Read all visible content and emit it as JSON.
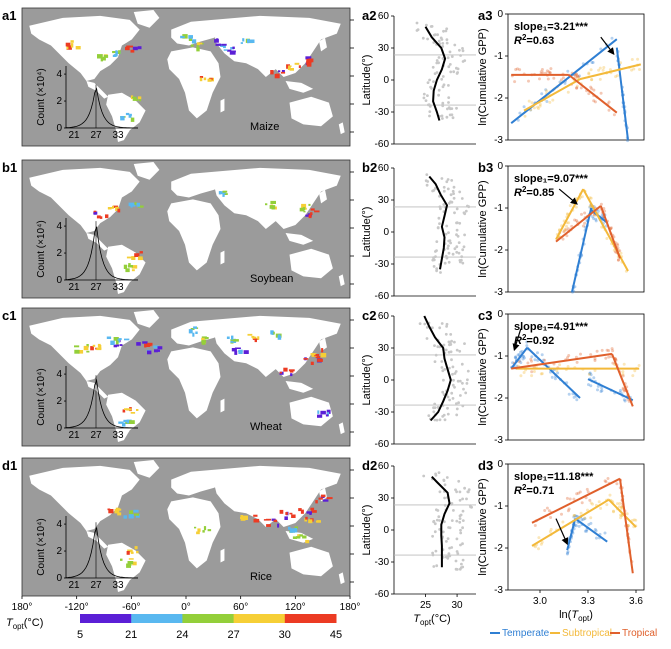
{
  "rows": [
    {
      "map_label": "a1",
      "lat_label": "a2",
      "reg_label": "a3",
      "crop": "Maize",
      "slope_text": "slope₁=3.21***",
      "r2_text": "=0.63",
      "hist_peak": 0.7,
      "lat_profile": [
        [
          -38,
          27.2
        ],
        [
          -30,
          26.8
        ],
        [
          -20,
          26.2
        ],
        [
          -10,
          26.3
        ],
        [
          0,
          26.8
        ],
        [
          10,
          27.6
        ],
        [
          20,
          28.1
        ],
        [
          30,
          27.5
        ],
        [
          40,
          26.0
        ],
        [
          50,
          25.0
        ]
      ],
      "lines": [
        {
          "region": "temperate",
          "pts": [
            [
              2.82,
              -2.6
            ],
            [
              3.48,
              -0.6
            ]
          ]
        },
        {
          "region": "temperate",
          "pts": [
            [
              3.48,
              -0.8
            ],
            [
              3.55,
              -3.0
            ]
          ]
        },
        {
          "region": "subtropical",
          "pts": [
            [
              2.9,
              -2.3
            ],
            [
              3.25,
              -1.55
            ]
          ]
        },
        {
          "region": "subtropical",
          "pts": [
            [
              3.25,
              -1.55
            ],
            [
              3.63,
              -1.2
            ]
          ]
        },
        {
          "region": "tropical",
          "pts": [
            [
              2.82,
              -1.45
            ],
            [
              3.18,
              -1.45
            ]
          ]
        },
        {
          "region": "tropical",
          "pts": [
            [
              3.18,
              -1.45
            ],
            [
              3.48,
              -2.35
            ]
          ]
        }
      ],
      "arrow": [
        [
          3.38,
          -0.55
        ],
        [
          3.46,
          -0.95
        ]
      ],
      "ylim": [
        -3,
        0
      ]
    },
    {
      "map_label": "b1",
      "lat_label": "b2",
      "reg_label": "b3",
      "crop": "Soybean",
      "slope_text": "slope₁=9.07***",
      "r2_text": "=0.85",
      "hist_peak": 0.95,
      "lat_profile": [
        [
          -35,
          27.3
        ],
        [
          -25,
          27.6
        ],
        [
          -15,
          27.9
        ],
        [
          -5,
          28.0
        ],
        [
          5,
          27.6
        ],
        [
          15,
          28.0
        ],
        [
          25,
          28.4
        ],
        [
          35,
          27.4
        ],
        [
          45,
          26.6
        ],
        [
          52,
          25.6
        ]
      ],
      "lines": [
        {
          "region": "temperate",
          "pts": [
            [
              3.2,
              -3.0
            ],
            [
              3.32,
              -1.0
            ]
          ]
        },
        {
          "region": "temperate",
          "pts": [
            [
              3.32,
              -1.05
            ],
            [
              3.42,
              -1.35
            ]
          ]
        },
        {
          "region": "subtropical",
          "pts": [
            [
              3.1,
              -1.75
            ],
            [
              3.27,
              -0.55
            ]
          ]
        },
        {
          "region": "subtropical",
          "pts": [
            [
              3.27,
              -0.55
            ],
            [
              3.55,
              -2.5
            ]
          ]
        },
        {
          "region": "tropical",
          "pts": [
            [
              3.1,
              -1.8
            ],
            [
              3.38,
              -0.95
            ]
          ]
        },
        {
          "region": "tropical",
          "pts": [
            [
              3.38,
              -0.95
            ],
            [
              3.5,
              -2.2
            ]
          ]
        }
      ],
      "arrow": [
        [
          3.12,
          -0.55
        ],
        [
          3.23,
          -0.9
        ]
      ],
      "ylim": [
        -3,
        0
      ]
    },
    {
      "map_label": "c1",
      "lat_label": "c2",
      "reg_label": "c3",
      "crop": "Wheat",
      "slope_text": "slope₁=4.91***",
      "r2_text": "=0.92",
      "hist_peak": 0.85,
      "lat_profile": [
        [
          -38,
          25.8
        ],
        [
          -30,
          27.0
        ],
        [
          -20,
          27.8
        ],
        [
          -10,
          28.5
        ],
        [
          0,
          29.0
        ],
        [
          10,
          28.5
        ],
        [
          20,
          28.0
        ],
        [
          30,
          27.8
        ],
        [
          40,
          26.5
        ],
        [
          50,
          25.6
        ],
        [
          60,
          24.8
        ]
      ],
      "lines": [
        {
          "region": "temperate",
          "pts": [
            [
              2.82,
              -1.3
            ],
            [
              2.92,
              -0.8
            ]
          ]
        },
        {
          "region": "temperate",
          "pts": [
            [
              2.92,
              -0.8
            ],
            [
              3.25,
              -2.0
            ]
          ]
        },
        {
          "region": "temperate",
          "pts": [
            [
              3.3,
              -1.55
            ],
            [
              3.58,
              -2.05
            ]
          ]
        },
        {
          "region": "subtropical",
          "pts": [
            [
              2.85,
              -1.3
            ],
            [
              3.62,
              -1.3
            ]
          ]
        },
        {
          "region": "tropical",
          "pts": [
            [
              2.82,
              -1.3
            ],
            [
              3.45,
              -0.95
            ]
          ]
        },
        {
          "region": "tropical",
          "pts": [
            [
              3.45,
              -0.95
            ],
            [
              3.58,
              -2.2
            ]
          ]
        }
      ],
      "arrow": [
        [
          2.88,
          -0.35
        ],
        [
          2.84,
          -0.85
        ]
      ],
      "ylim": [
        -3,
        0
      ]
    },
    {
      "map_label": "d1",
      "lat_label": "d2",
      "reg_label": "d3",
      "crop": "Rice",
      "slope_text": "slope₁=11.18***",
      "r2_text": "=0.71",
      "hist_peak": 0.9,
      "lat_profile": [
        [
          -35,
          27.6
        ],
        [
          -25,
          27.6
        ],
        [
          -15,
          27.6
        ],
        [
          -5,
          27.5
        ],
        [
          5,
          27.5
        ],
        [
          15,
          28.0
        ],
        [
          25,
          28.8
        ],
        [
          35,
          28.5
        ],
        [
          45,
          26.8
        ],
        [
          50,
          26.0
        ]
      ],
      "lines": [
        {
          "region": "temperate",
          "pts": [
            [
              3.17,
              -2.05
            ],
            [
              3.22,
              -1.3
            ]
          ]
        },
        {
          "region": "temperate",
          "pts": [
            [
              3.22,
              -1.3
            ],
            [
              3.42,
              -1.85
            ]
          ]
        },
        {
          "region": "subtropical",
          "pts": [
            [
              2.95,
              -1.95
            ],
            [
              3.43,
              -0.85
            ]
          ]
        },
        {
          "region": "subtropical",
          "pts": [
            [
              3.43,
              -0.85
            ],
            [
              3.6,
              -1.5
            ]
          ]
        },
        {
          "region": "tropical",
          "pts": [
            [
              2.95,
              -1.4
            ],
            [
              3.5,
              -0.35
            ]
          ]
        },
        {
          "region": "tropical",
          "pts": [
            [
              3.5,
              -0.35
            ],
            [
              3.58,
              -2.6
            ]
          ]
        }
      ],
      "arrow": [
        [
          3.1,
          -1.3
        ],
        [
          3.17,
          -1.9
        ]
      ],
      "ylim": [
        -3,
        0
      ]
    }
  ],
  "hist": {
    "ylabel": "Count (×10⁴)",
    "yticks": [
      "0",
      "2",
      "4"
    ],
    "xticks": [
      "21",
      "27",
      "33"
    ]
  },
  "lat_axis": {
    "ylabel": "Latitude(°)",
    "yticks": [
      "60",
      "30",
      "0",
      "-30",
      "-60"
    ],
    "xticks": [
      "25",
      "30"
    ],
    "xlabel_main": "T",
    "xlabel_sub": "opt",
    "xlabel_rest": "(°C)"
  },
  "reg_axis": {
    "ylabel": "ln(Cumulative GPP)",
    "yticks": [
      "0",
      "-1",
      "-2",
      "-3"
    ],
    "xticks": [
      "3.0",
      "3.3",
      "3.6"
    ],
    "xlabel_pre": "ln(",
    "xlabel_main": "T",
    "xlabel_sub": "opt",
    "xlabel_post": ")",
    "r2_main": "R",
    "r2_sup": "2"
  },
  "lon_ticks": [
    "180°",
    "-120°",
    "-60°",
    "0°",
    "60°",
    "120°",
    "180°"
  ],
  "colorbar": {
    "label_main": "T",
    "label_sub": "opt",
    "label_rest": "(°C)",
    "ticks": [
      "5",
      "21",
      "24",
      "27",
      "30",
      "45"
    ],
    "colors": [
      "#5b1fd6",
      "#59b8f0",
      "#93cf3a",
      "#f6cf36",
      "#ec3b23"
    ]
  },
  "legend": [
    {
      "name": "Temperate",
      "color": "#2f7fd3"
    },
    {
      "name": "Subtropical",
      "color": "#f3b93a"
    },
    {
      "name": "Tropical",
      "color": "#e0602c"
    }
  ],
  "colors": {
    "temperate": "#2f7fd3",
    "subtropical": "#f3b93a",
    "tropical": "#e0602c",
    "ocean": "#9b9b9b",
    "land": "#ffffff"
  }
}
